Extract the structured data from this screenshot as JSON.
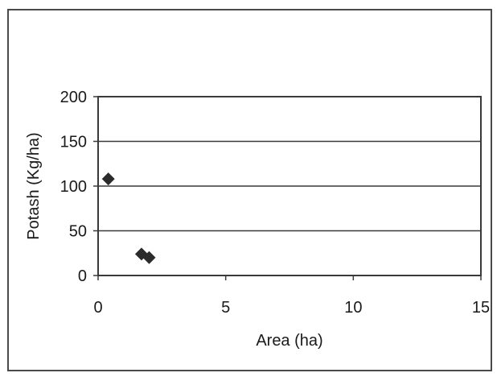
{
  "chart_data": {
    "type": "scatter",
    "title": "",
    "xlabel": "Area (ha)",
    "ylabel": "Potash (Kg/ha)",
    "xlim": [
      0,
      15
    ],
    "ylim": [
      0,
      200
    ],
    "x_ticks": [
      "0",
      "5",
      "10",
      "15"
    ],
    "y_ticks": [
      "200",
      "150",
      "100",
      "50",
      "0"
    ],
    "grid": "horizontal",
    "legend": "none",
    "series": [
      {
        "points": [
          {
            "x": 0.4,
            "y": 108
          },
          {
            "x": 1.7,
            "y": 24
          },
          {
            "x": 2.0,
            "y": 20
          }
        ]
      }
    ],
    "marker_color": "#2b2b2b"
  }
}
